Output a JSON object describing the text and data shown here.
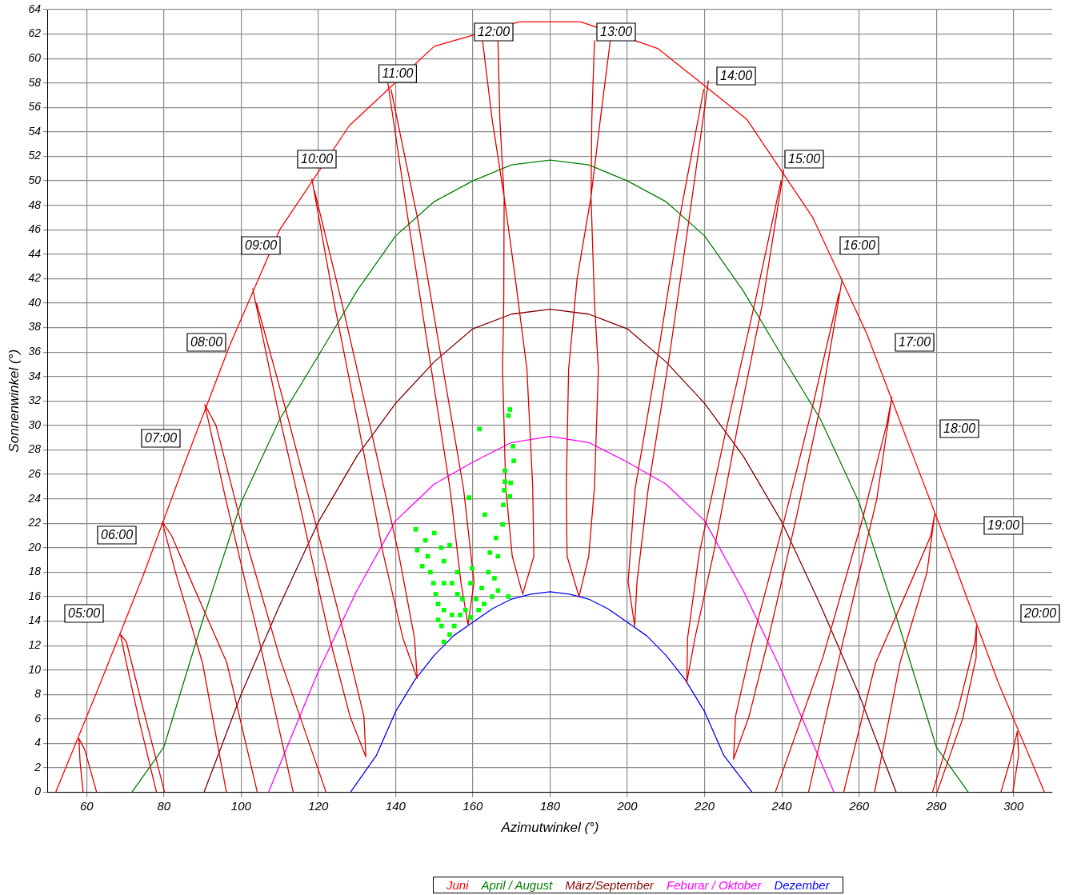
{
  "chart_data": {
    "type": "line",
    "xlabel": "Azimutwinkel (°)",
    "ylabel": "Sonnenwinkel (°)",
    "xlim": [
      50,
      310
    ],
    "xticks": [
      60,
      80,
      100,
      120,
      140,
      160,
      180,
      200,
      220,
      240,
      260,
      280,
      300
    ],
    "ylim": [
      0,
      64
    ],
    "yticks": [
      0,
      2,
      4,
      6,
      8,
      10,
      12,
      14,
      16,
      18,
      20,
      22,
      24,
      26,
      28,
      30,
      32,
      34,
      36,
      38,
      40,
      42,
      44,
      46,
      48,
      50,
      52,
      54,
      56,
      58,
      60,
      62,
      64
    ],
    "grid": true,
    "legend": "bottom",
    "line_style": "solid",
    "series": [
      {
        "name": "Juni",
        "color": "#ff0000",
        "x": [
          52,
          63,
          74.5,
          85.5,
          97,
          110,
          128,
          150,
          172,
          188,
          208,
          231,
          248,
          262,
          274,
          285,
          296,
          308
        ],
        "values": [
          0,
          8.5,
          17.6,
          27,
          36.5,
          46,
          54.5,
          61,
          63,
          63,
          60.8,
          55,
          47,
          37.5,
          27.5,
          18.4,
          9,
          0
        ]
      },
      {
        "name": "April / August",
        "color": "#008000",
        "x": [
          71.7,
          80,
          90,
          100,
          110,
          120,
          130,
          140,
          150,
          160,
          170,
          180,
          190,
          200,
          210,
          220,
          230,
          240,
          250,
          260,
          270,
          280,
          288.3
        ],
        "values": [
          0,
          3.7,
          14,
          23.7,
          30.5,
          35.7,
          41,
          45.5,
          48.3,
          50,
          51.3,
          51.7,
          51.3,
          50,
          48.3,
          45.5,
          41,
          35.7,
          30.5,
          23.7,
          14,
          3.7,
          0
        ]
      },
      {
        "name": "März/September",
        "color": "#800000",
        "x": [
          90.4,
          100,
          110,
          120,
          130,
          140,
          150,
          160,
          170,
          180,
          190,
          200,
          210,
          220,
          230,
          240,
          250,
          260,
          269.6
        ],
        "values": [
          0,
          8,
          15.3,
          22.1,
          27.5,
          31.8,
          35.2,
          37.9,
          39.1,
          39.5,
          39.1,
          37.9,
          35.2,
          31.8,
          27.5,
          22.1,
          15.3,
          8,
          0
        ]
      },
      {
        "name": "Feburar / Oktober",
        "color": "#ff00ff",
        "x": [
          107.1,
          120,
          130,
          140,
          150,
          160,
          170,
          180,
          190,
          200,
          210,
          220,
          230,
          240,
          253.5
        ],
        "values": [
          0,
          9.9,
          16.5,
          22.2,
          25.2,
          27,
          28.6,
          29.1,
          28.6,
          27,
          25.2,
          22.2,
          16.5,
          9.9,
          0
        ]
      },
      {
        "name": "Dezember",
        "color": "#0000ff",
        "x": [
          128.3,
          135,
          140,
          145,
          150,
          155,
          160,
          165,
          170,
          175,
          180,
          185,
          190,
          195,
          200,
          205,
          210,
          215,
          220,
          225,
          232.3
        ],
        "values": [
          0,
          3,
          6.6,
          9.2,
          11.2,
          12.8,
          13.9,
          15,
          15.8,
          16.2,
          16.4,
          16.2,
          15.8,
          15,
          13.9,
          12.8,
          11.2,
          9.2,
          6.6,
          3,
          0
        ]
      },
      {
        "color": "#e00000",
        "x": [
          59.1,
          58.3,
          58,
          59.5,
          62.6,
          null,
          78.1,
          73.5,
          70,
          68.8,
          70.3,
          74.5,
          80.2,
          null,
          96.2,
          90,
          83,
          79.6,
          82,
          87.3,
          96.3,
          104.2,
          null,
          113.5,
          105,
          96,
          90.6,
          93.5,
          100,
          110,
          122,
          null,
          103,
          109.3,
          116.2,
          123,
          128.2,
          132.3,
          131.8,
          127,
          119.2,
          111.3,
          104,
          null,
          118.3,
          124.1,
          130.5,
          136.8,
          141.9,
          145.6,
          144.9,
          140.8,
          133.5,
          126.1,
          119,
          null,
          138,
          143.2,
          148.6,
          154.1,
          156.9,
          158.75,
          160.3,
          157.6,
          151.6,
          145.7,
          138.8,
          null,
          162.5,
          165,
          168.1,
          168,
          167.7,
          168.5,
          170.2,
          172.9,
          175.8,
          175.5,
          174,
          171,
          168.1,
          167,
          166.5,
          null,
          191.5,
          190.8,
          190.6,
          187,
          184.8,
          184.2,
          184.4,
          187.5,
          190,
          191.5,
          192.5,
          191.5,
          190.6,
          193,
          195.6,
          null,
          221,
          216,
          211,
          205.4,
          202.5,
          201.9,
          200.2,
          202,
          208,
          213.5,
          219.8,
          null,
          240.5,
          235,
          228.5,
          222.3,
          217.5,
          215.4,
          215.6,
          218.6,
          225.7,
          233,
          239.8,
          null,
          255.6,
          250,
          243.5,
          236.5,
          231.5,
          227.5,
          228,
          232.5,
          240.5,
          248,
          254.8,
          null,
          246.9,
          255.6,
          264.6,
          268.5,
          267.1,
          260.6,
          250.6,
          238.3,
          null,
          264,
          270.6,
          277.6,
          279.6,
          278.6,
          273.3,
          264.3,
          256,
          null,
          280.2,
          286.8,
          290.3,
          290.4,
          290,
          285.8,
          279,
          null,
          296.7,
          299.5,
          301,
          301.3,
          299.8
        ],
        "values": [
          0,
          2.5,
          4.4,
          3.5,
          0,
          null,
          0,
          6,
          11,
          12.9,
          12.3,
          7,
          0,
          null,
          0,
          10.6,
          18,
          22.1,
          21,
          17.1,
          10.6,
          0,
          null,
          0,
          12,
          24,
          31.7,
          30,
          22,
          11,
          0,
          null,
          41.2,
          31.6,
          22.1,
          12.5,
          6.2,
          2.9,
          6.2,
          12.5,
          22.1,
          31.6,
          40,
          null,
          50.2,
          40,
          29.8,
          19.5,
          12.6,
          9.3,
          12.6,
          19.5,
          29.8,
          40,
          49.2,
          null,
          58,
          46.9,
          35.9,
          24.8,
          17.2,
          13.7,
          17.2,
          24.8,
          35.9,
          46.9,
          57.5,
          null,
          61.5,
          55,
          48.7,
          40,
          34.6,
          25,
          19.3,
          16.2,
          19.3,
          25,
          34.6,
          42,
          48.7,
          55,
          61.5,
          null,
          61.5,
          55,
          48.7,
          42,
          34.6,
          25,
          19.3,
          16,
          19.3,
          25,
          34.6,
          40,
          48.7,
          55,
          61.5,
          null,
          58.2,
          46.9,
          35.9,
          24.8,
          17.2,
          13.6,
          17.2,
          24.8,
          35.9,
          46.9,
          57.5,
          null,
          50.9,
          40,
          29.8,
          19.5,
          12.6,
          9,
          12.6,
          19.5,
          29.8,
          40,
          50,
          null,
          41.9,
          31.6,
          22.1,
          12.5,
          6.2,
          2.7,
          6.2,
          12.5,
          22.1,
          31.6,
          40.8,
          null,
          0,
          12,
          24,
          32.3,
          30,
          22,
          11,
          0,
          null,
          0,
          10.6,
          18,
          22.8,
          21,
          17.1,
          10.6,
          0,
          null,
          0,
          6,
          11,
          13.6,
          12.3,
          7,
          0,
          null,
          0,
          3,
          5,
          3,
          0
        ]
      },
      {
        "type": "scatter",
        "color": "#00ff00",
        "marker": "square",
        "x": [
          169.6,
          169.2,
          161.7,
          170.4,
          170.6,
          168.3,
          168.3,
          169.8,
          168.1,
          169.6,
          159,
          167.9,
          163.1,
          167.7,
          166,
          164.4,
          166.5,
          159.8,
          164,
          165.6,
          145.2,
          150,
          154,
          145.6,
          146.9,
          152.5,
          149.8,
          156,
          159.4,
          151,
          156,
          162.3,
          166.5,
          169.2,
          151.9,
          154.6,
          158.1,
          162.9,
          152.5,
          154,
          159.4,
          148.3,
          152.5,
          147.7,
          151.8,
          149,
          150.4,
          154.6,
          157.3,
          160.8,
          165,
          152.5,
          156.7,
          161.5,
          151,
          155.2
        ],
        "values": [
          31.3,
          30.8,
          29.7,
          28.3,
          27.1,
          26.3,
          25.4,
          25.3,
          24.7,
          24.2,
          24.1,
          23.5,
          22.7,
          21.9,
          20.8,
          19.6,
          19.3,
          18.3,
          18,
          17.5,
          21.5,
          21.2,
          20.2,
          19.8,
          18.5,
          18.9,
          17.1,
          18,
          17.1,
          15.4,
          16.2,
          16.7,
          16.5,
          16,
          13.6,
          14.5,
          14.9,
          15.4,
          12.3,
          12.9,
          14.3,
          19.3,
          17.1,
          20.6,
          20,
          18,
          16.2,
          17.1,
          15.8,
          15.8,
          16,
          14.9,
          14.5,
          14.9,
          14.1,
          13.6
        ]
      }
    ],
    "annotations": [
      "05:00",
      "06:00",
      "07:00",
      "08:00",
      "09:00",
      "10:00",
      "11:00",
      "12:00",
      "13:00",
      "14:00",
      "15:00",
      "16:00",
      "17:00",
      "18:00",
      "19:00",
      "20:00"
    ]
  }
}
